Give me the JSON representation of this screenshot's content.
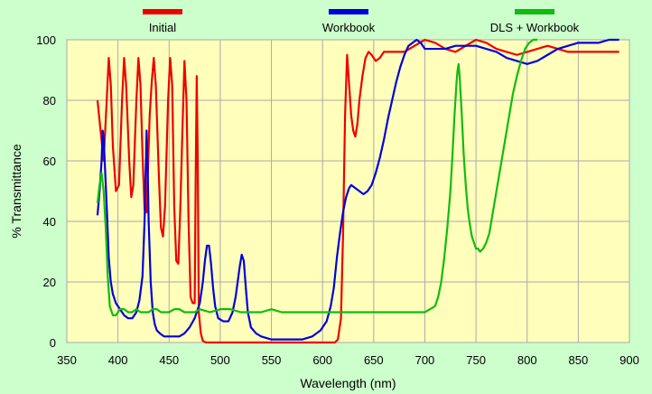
{
  "chart_data": {
    "type": "line",
    "title": "",
    "xlabel": "Wavelength (nm)",
    "ylabel": "% Transmittance",
    "xlim": [
      350,
      900
    ],
    "ylim": [
      0,
      100
    ],
    "xticks": [
      350,
      400,
      450,
      500,
      550,
      600,
      650,
      700,
      750,
      800,
      850,
      900
    ],
    "yticks": [
      0,
      20,
      40,
      60,
      80,
      100
    ],
    "grid": true,
    "legend_position": "top",
    "colors": {
      "background": "#ccffcc",
      "plot_area": "#ffffbb",
      "grid": "#aaaaaa"
    },
    "series": [
      {
        "name": "Initial",
        "color": "#ee0000",
        "points": [
          [
            380,
            80
          ],
          [
            383,
            70
          ],
          [
            386,
            60
          ],
          [
            389,
            80
          ],
          [
            391,
            94
          ],
          [
            393,
            85
          ],
          [
            395,
            65
          ],
          [
            398,
            50
          ],
          [
            401,
            52
          ],
          [
            404,
            80
          ],
          [
            406,
            94
          ],
          [
            408,
            85
          ],
          [
            411,
            60
          ],
          [
            413,
            48
          ],
          [
            415,
            52
          ],
          [
            418,
            80
          ],
          [
            420,
            94
          ],
          [
            422,
            85
          ],
          [
            424,
            62
          ],
          [
            426,
            44
          ],
          [
            428,
            43
          ],
          [
            431,
            75
          ],
          [
            433,
            86
          ],
          [
            435,
            94
          ],
          [
            437,
            85
          ],
          [
            440,
            55
          ],
          [
            442,
            38
          ],
          [
            444,
            35
          ],
          [
            446,
            45
          ],
          [
            449,
            80
          ],
          [
            451,
            94
          ],
          [
            453,
            85
          ],
          [
            455,
            45
          ],
          [
            457,
            27
          ],
          [
            459,
            26
          ],
          [
            461,
            45
          ],
          [
            463,
            70
          ],
          [
            465,
            93
          ],
          [
            467,
            80
          ],
          [
            469,
            40
          ],
          [
            471,
            15
          ],
          [
            473,
            13
          ],
          [
            475,
            13
          ],
          [
            476,
            55
          ],
          [
            477,
            88
          ],
          [
            478,
            60
          ],
          [
            479,
            10
          ],
          [
            481,
            3
          ],
          [
            483,
            0.5
          ],
          [
            486,
            0
          ],
          [
            500,
            0
          ],
          [
            550,
            0
          ],
          [
            600,
            0
          ],
          [
            612,
            0
          ],
          [
            615,
            1
          ],
          [
            618,
            8
          ],
          [
            620,
            35
          ],
          [
            622,
            75
          ],
          [
            624,
            95
          ],
          [
            626,
            85
          ],
          [
            628,
            75
          ],
          [
            630,
            70
          ],
          [
            632,
            68
          ],
          [
            634,
            72
          ],
          [
            636,
            80
          ],
          [
            639,
            88
          ],
          [
            642,
            94
          ],
          [
            645,
            96
          ],
          [
            648,
            95
          ],
          [
            652,
            93
          ],
          [
            656,
            94
          ],
          [
            660,
            96
          ],
          [
            670,
            96
          ],
          [
            680,
            96
          ],
          [
            690,
            98
          ],
          [
            700,
            100
          ],
          [
            710,
            99
          ],
          [
            720,
            97
          ],
          [
            730,
            96
          ],
          [
            740,
            98
          ],
          [
            750,
            100
          ],
          [
            760,
            99
          ],
          [
            770,
            97
          ],
          [
            780,
            96
          ],
          [
            790,
            95
          ],
          [
            800,
            96
          ],
          [
            810,
            97
          ],
          [
            820,
            98
          ],
          [
            830,
            97
          ],
          [
            840,
            96
          ],
          [
            850,
            96
          ],
          [
            860,
            96
          ],
          [
            870,
            96
          ],
          [
            880,
            96
          ],
          [
            890,
            96
          ]
        ]
      },
      {
        "name": "Workbook",
        "color": "#0000dd",
        "points": [
          [
            380,
            42
          ],
          [
            382,
            50
          ],
          [
            384,
            60
          ],
          [
            385,
            70
          ],
          [
            386,
            68
          ],
          [
            387,
            60
          ],
          [
            389,
            45
          ],
          [
            391,
            28
          ],
          [
            393,
            20
          ],
          [
            395,
            16
          ],
          [
            398,
            13
          ],
          [
            402,
            11
          ],
          [
            406,
            9
          ],
          [
            410,
            8
          ],
          [
            414,
            8
          ],
          [
            418,
            10
          ],
          [
            421,
            14
          ],
          [
            424,
            22
          ],
          [
            426,
            40
          ],
          [
            427,
            55
          ],
          [
            428,
            70
          ],
          [
            429,
            58
          ],
          [
            430,
            40
          ],
          [
            432,
            20
          ],
          [
            434,
            10
          ],
          [
            436,
            6
          ],
          [
            438,
            4
          ],
          [
            441,
            3
          ],
          [
            445,
            2
          ],
          [
            450,
            2
          ],
          [
            455,
            2
          ],
          [
            460,
            2
          ],
          [
            465,
            3
          ],
          [
            470,
            5
          ],
          [
            475,
            8
          ],
          [
            480,
            13
          ],
          [
            483,
            20
          ],
          [
            485,
            27
          ],
          [
            487,
            32
          ],
          [
            489,
            32
          ],
          [
            491,
            26
          ],
          [
            493,
            18
          ],
          [
            495,
            12
          ],
          [
            498,
            8
          ],
          [
            503,
            7
          ],
          [
            508,
            7
          ],
          [
            512,
            10
          ],
          [
            515,
            15
          ],
          [
            517,
            20
          ],
          [
            519,
            25
          ],
          [
            521,
            29
          ],
          [
            523,
            27
          ],
          [
            525,
            18
          ],
          [
            527,
            10
          ],
          [
            530,
            5
          ],
          [
            535,
            3
          ],
          [
            540,
            2
          ],
          [
            550,
            1
          ],
          [
            560,
            1
          ],
          [
            570,
            1
          ],
          [
            580,
            1
          ],
          [
            590,
            2
          ],
          [
            598,
            4
          ],
          [
            604,
            7
          ],
          [
            608,
            12
          ],
          [
            611,
            18
          ],
          [
            614,
            28
          ],
          [
            617,
            36
          ],
          [
            620,
            43
          ],
          [
            623,
            48
          ],
          [
            626,
            51
          ],
          [
            628,
            52
          ],
          [
            632,
            51
          ],
          [
            636,
            50
          ],
          [
            640,
            49
          ],
          [
            644,
            50
          ],
          [
            648,
            52
          ],
          [
            652,
            56
          ],
          [
            656,
            61
          ],
          [
            660,
            67
          ],
          [
            664,
            74
          ],
          [
            668,
            80
          ],
          [
            672,
            86
          ],
          [
            676,
            91
          ],
          [
            680,
            95
          ],
          [
            684,
            98
          ],
          [
            688,
            99
          ],
          [
            692,
            100
          ],
          [
            696,
            99
          ],
          [
            700,
            97
          ],
          [
            705,
            97
          ],
          [
            710,
            97
          ],
          [
            715,
            97
          ],
          [
            720,
            97
          ],
          [
            730,
            98
          ],
          [
            740,
            98
          ],
          [
            750,
            98
          ],
          [
            760,
            97
          ],
          [
            770,
            96
          ],
          [
            780,
            94
          ],
          [
            790,
            93
          ],
          [
            800,
            92
          ],
          [
            810,
            93
          ],
          [
            820,
            95
          ],
          [
            830,
            97
          ],
          [
            840,
            98
          ],
          [
            850,
            99
          ],
          [
            860,
            99
          ],
          [
            870,
            99
          ],
          [
            880,
            100
          ],
          [
            890,
            100
          ]
        ]
      },
      {
        "name": "DLS + Workbook",
        "color": "#11bb11",
        "points": [
          [
            380,
            46
          ],
          [
            382,
            52
          ],
          [
            384,
            56
          ],
          [
            386,
            50
          ],
          [
            388,
            38
          ],
          [
            390,
            22
          ],
          [
            392,
            12
          ],
          [
            395,
            9
          ],
          [
            398,
            9
          ],
          [
            402,
            11
          ],
          [
            406,
            11
          ],
          [
            410,
            10
          ],
          [
            414,
            10
          ],
          [
            418,
            11
          ],
          [
            422,
            10
          ],
          [
            426,
            10
          ],
          [
            430,
            10
          ],
          [
            434,
            11
          ],
          [
            438,
            11
          ],
          [
            442,
            10
          ],
          [
            446,
            10
          ],
          [
            450,
            10
          ],
          [
            455,
            11
          ],
          [
            460,
            11
          ],
          [
            465,
            10
          ],
          [
            470,
            10
          ],
          [
            475,
            10
          ],
          [
            480,
            11
          ],
          [
            490,
            10
          ],
          [
            500,
            11
          ],
          [
            510,
            11
          ],
          [
            520,
            10
          ],
          [
            530,
            10
          ],
          [
            540,
            10
          ],
          [
            550,
            11
          ],
          [
            560,
            10
          ],
          [
            570,
            10
          ],
          [
            580,
            10
          ],
          [
            590,
            10
          ],
          [
            600,
            10
          ],
          [
            610,
            10
          ],
          [
            620,
            10
          ],
          [
            630,
            10
          ],
          [
            640,
            10
          ],
          [
            650,
            10
          ],
          [
            660,
            10
          ],
          [
            670,
            10
          ],
          [
            680,
            10
          ],
          [
            690,
            10
          ],
          [
            700,
            10
          ],
          [
            705,
            11
          ],
          [
            710,
            12
          ],
          [
            713,
            15
          ],
          [
            716,
            20
          ],
          [
            719,
            28
          ],
          [
            722,
            38
          ],
          [
            725,
            50
          ],
          [
            727,
            62
          ],
          [
            729,
            75
          ],
          [
            731,
            86
          ],
          [
            732,
            90
          ],
          [
            733,
            92
          ],
          [
            734,
            88
          ],
          [
            736,
            76
          ],
          [
            738,
            62
          ],
          [
            740,
            52
          ],
          [
            742,
            44
          ],
          [
            744,
            39
          ],
          [
            746,
            35
          ],
          [
            748,
            33
          ],
          [
            750,
            31
          ],
          [
            752,
            31
          ],
          [
            754,
            30
          ],
          [
            757,
            31
          ],
          [
            760,
            33
          ],
          [
            763,
            36
          ],
          [
            766,
            42
          ],
          [
            770,
            50
          ],
          [
            774,
            58
          ],
          [
            778,
            66
          ],
          [
            782,
            74
          ],
          [
            786,
            82
          ],
          [
            790,
            88
          ],
          [
            794,
            93
          ],
          [
            798,
            97
          ],
          [
            802,
            99
          ],
          [
            806,
            100
          ],
          [
            810,
            100
          ]
        ]
      }
    ]
  }
}
